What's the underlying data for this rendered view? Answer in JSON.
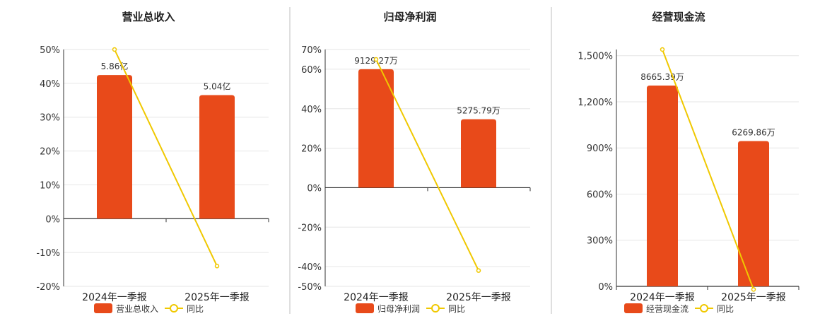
{
  "colors": {
    "bar": "#e84a1a",
    "line": "#f0c800",
    "axis": "#333333",
    "grid": "#e6e6e6",
    "divider": "#bfbfbf"
  },
  "chart_data": [
    {
      "type": "bar",
      "title": "营业总收入",
      "categories": [
        "2024年一季报",
        "2025年一季报"
      ],
      "series": [
        {
          "name": "营业总收入",
          "type": "bar",
          "axis": "y_left",
          "values": [
            5.86,
            5.04
          ],
          "labels": [
            "5.86亿",
            "5.04亿"
          ]
        },
        {
          "name": "同比",
          "type": "line",
          "axis": "y_right",
          "values": [
            50.0,
            -14.0
          ]
        }
      ],
      "y_left_max": 6.9,
      "y_right": {
        "ticks": [
          50,
          40,
          30,
          20,
          10,
          0,
          -10,
          -20
        ],
        "tick_labels": [
          "50%",
          "40%",
          "30%",
          "20%",
          "10%",
          "0%",
          "-10%",
          "-20%"
        ],
        "min": -20,
        "max": 50
      },
      "legend": [
        "营业总收入",
        "同比"
      ],
      "legend_position": "bottom",
      "grid": true
    },
    {
      "type": "bar",
      "title": "归母净利润",
      "categories": [
        "2024年一季报",
        "2025年一季报"
      ],
      "series": [
        {
          "name": "归母净利润",
          "type": "bar",
          "axis": "y_left",
          "values": [
            9129.27,
            5275.79
          ],
          "labels": [
            "9129.27万",
            "5275.79万"
          ]
        },
        {
          "name": "同比",
          "type": "line",
          "axis": "y_right",
          "values": [
            65.0,
            -42.0
          ]
        }
      ],
      "y_left_max": 10650,
      "y_right": {
        "ticks": [
          70,
          60,
          40,
          20,
          0,
          -20,
          -40,
          -50
        ],
        "tick_labels": [
          "70%",
          "60%",
          "40%",
          "20%",
          "0%",
          "-20%",
          "-40%",
          "-50%"
        ],
        "min": -50,
        "max": 70
      },
      "legend": [
        "归母净利润",
        "同比"
      ],
      "legend_position": "bottom",
      "grid": true
    },
    {
      "type": "bar",
      "title": "经营现金流",
      "categories": [
        "2024年一季报",
        "2025年一季报"
      ],
      "series": [
        {
          "name": "经营现金流",
          "type": "bar",
          "axis": "y_left",
          "values": [
            8665.39,
            6269.86
          ],
          "labels": [
            "8665.39万",
            "6269.86万"
          ]
        },
        {
          "name": "同比",
          "type": "line",
          "axis": "y_right",
          "values": [
            1540,
            -20
          ]
        }
      ],
      "y_left_max": 10220,
      "y_right": {
        "ticks": [
          1500,
          1200,
          900,
          600,
          300,
          0
        ],
        "tick_labels": [
          "1,500%",
          "1,200%",
          "900%",
          "600%",
          "300%",
          "0%"
        ],
        "min": 0,
        "max": 1540
      },
      "legend": [
        "经营现金流",
        "同比"
      ],
      "legend_position": "bottom",
      "grid": true
    }
  ]
}
